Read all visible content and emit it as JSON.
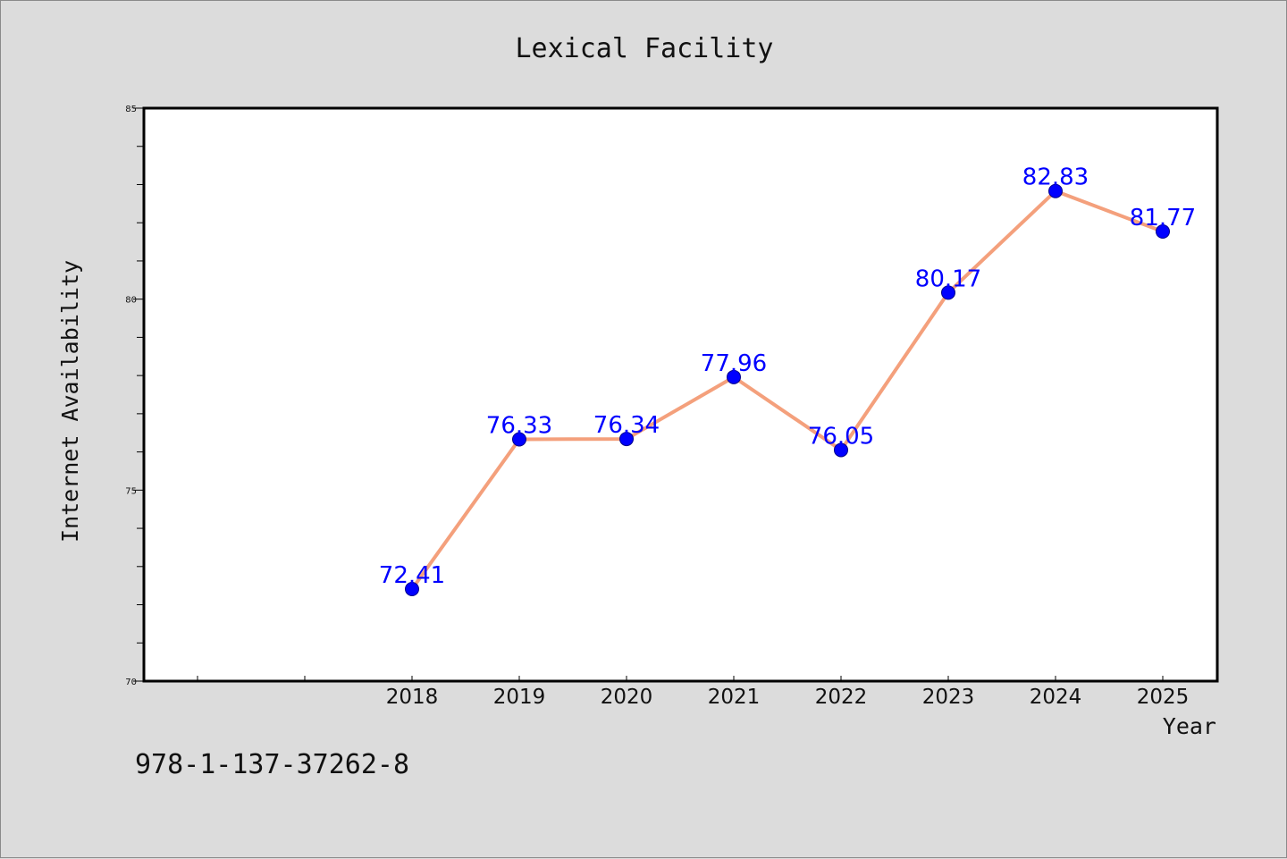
{
  "chart_data": {
    "type": "line",
    "title": "Lexical Facility",
    "xlabel": "Year",
    "ylabel": "Internet Availability",
    "categories": [
      "2018",
      "2019",
      "2020",
      "2021",
      "2022",
      "2023",
      "2024",
      "2025"
    ],
    "values": [
      72.41,
      76.33,
      76.34,
      77.96,
      76.05,
      80.17,
      82.83,
      81.77
    ],
    "data_labels": [
      "72.41",
      "76.33",
      "76.34",
      "77.96",
      "76.05",
      "80.17",
      "82.83",
      "81.77"
    ],
    "ylim": [
      70,
      85
    ],
    "yticks": [
      70,
      75,
      80,
      85
    ],
    "grid": false,
    "legend": "none",
    "colors": {
      "line": "#f4a07c",
      "marker": "#0000ff",
      "label": "#0000ff",
      "background": "#dcdcdc",
      "plot_background": "#ffffff"
    }
  },
  "footer_code": "978-1-137-37262-8"
}
